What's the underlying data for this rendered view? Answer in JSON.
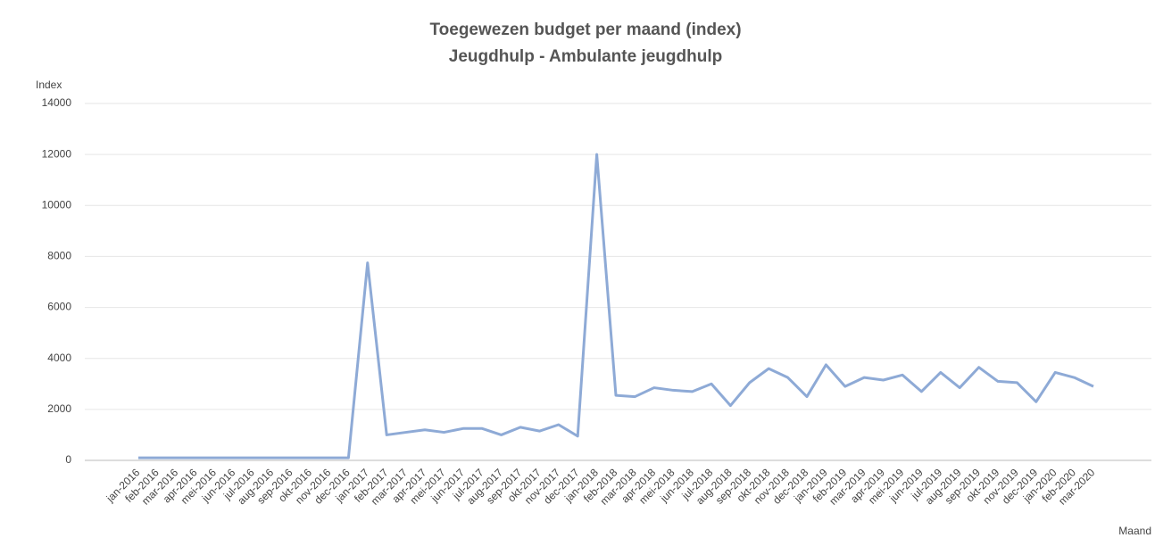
{
  "chart_data": {
    "type": "line",
    "title": "Toegewezen budget per maand (index)",
    "subtitle": "Jeugdhulp - Ambulante jeugdhulp",
    "y_label": "Index",
    "x_label": "Maand",
    "categories": [
      "jan-2016",
      "feb-2016",
      "mar-2016",
      "apr-2016",
      "mei-2016",
      "jun-2016",
      "jul-2016",
      "aug-2016",
      "sep-2016",
      "okt-2016",
      "nov-2016",
      "dec-2016",
      "jan-2017",
      "feb-2017",
      "mar-2017",
      "apr-2017",
      "mei-2017",
      "jun-2017",
      "jul-2017",
      "aug-2017",
      "sep-2017",
      "okt-2017",
      "nov-2017",
      "dec-2017",
      "jan-2018",
      "feb-2018",
      "mar-2018",
      "apr-2018",
      "mei-2018",
      "jun-2018",
      "jul-2018",
      "aug-2018",
      "sep-2018",
      "okt-2018",
      "nov-2018",
      "dec-2018",
      "jan-2019",
      "feb-2019",
      "mar-2019",
      "apr-2019",
      "mei-2019",
      "jun-2019",
      "jul-2019",
      "aug-2019",
      "sep-2019",
      "okt-2019",
      "nov-2019",
      "dec-2019",
      "jan-2020",
      "feb-2020",
      "mar-2020"
    ],
    "values": [
      100,
      100,
      100,
      100,
      100,
      100,
      100,
      100,
      100,
      100,
      100,
      100,
      7750,
      1000,
      1100,
      1200,
      1100,
      1250,
      1250,
      1000,
      1300,
      1150,
      1400,
      950,
      12000,
      2550,
      2500,
      2850,
      2750,
      2700,
      3000,
      2150,
      3050,
      3600,
      3250,
      2500,
      3750,
      2900,
      3250,
      3150,
      3350,
      2700,
      3450,
      2850,
      3650,
      3100,
      3050,
      2300,
      3450,
      3250,
      2900
    ],
    "color": "#8eaad6",
    "ylim": [
      0,
      14000
    ],
    "yticks": [
      0,
      2000,
      4000,
      6000,
      8000,
      10000,
      12000,
      14000
    ],
    "grid": true
  }
}
